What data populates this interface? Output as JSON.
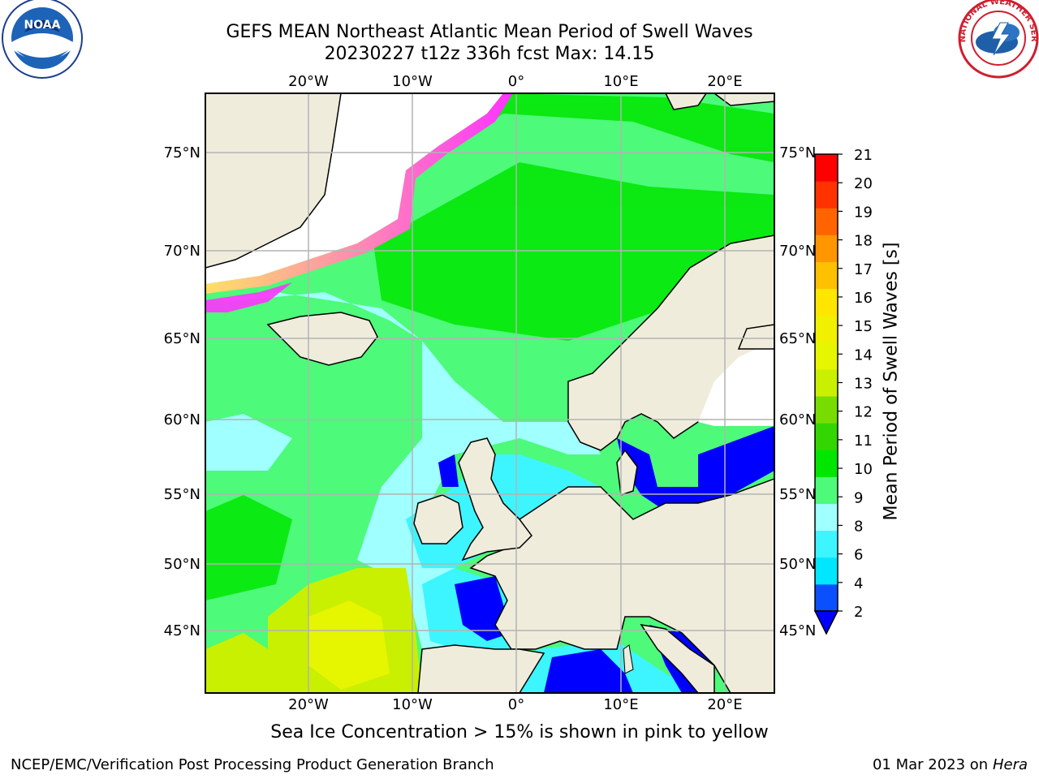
{
  "header": {
    "title_line1": "GEFS MEAN Northeast Atlantic Mean Period of Swell Waves",
    "title_line2": "20230227 t12z 336h fcst   Max: 14.15"
  },
  "map": {
    "lon_labels_top": [
      "20°W",
      "10°W",
      "0°",
      "10°E",
      "20°E"
    ],
    "lon_labels_bottom": [
      "20°W",
      "10°W",
      "0°",
      "10°E",
      "20°E"
    ],
    "lat_labels_left": [
      "75°N",
      "70°N",
      "65°N",
      "60°N",
      "55°N",
      "50°N",
      "45°N"
    ],
    "lat_labels_right": [
      "75°N",
      "70°N",
      "65°N",
      "60°N",
      "55°N",
      "50°N",
      "45°N"
    ],
    "colors": {
      "land": "#efecdc",
      "no_data": "#ffffff",
      "gridline": "#b3b3b3",
      "coast": "#000000",
      "ice_pink": "#ff33ff",
      "ice_yellow": "#ffe066"
    }
  },
  "colorbar": {
    "label": "Mean Period of Swell Waves [s]",
    "ticks": [
      "2",
      "4",
      "6",
      "8",
      "9",
      "10",
      "11",
      "12",
      "13",
      "14",
      "15",
      "16",
      "17",
      "18",
      "19",
      "20",
      "21"
    ],
    "colors": [
      "#0a50ff",
      "#00e6ff",
      "#3cf5ff",
      "#a0ffff",
      "#4dfa7a",
      "#00e600",
      "#33d600",
      "#77dd00",
      "#c8f000",
      "#e6f500",
      "#f0f000",
      "#ffe600",
      "#ffc000",
      "#ff9600",
      "#ff6400",
      "#ff3200",
      "#ff0000"
    ],
    "under_color": "#0000ff"
  },
  "caption": "Sea Ice Concentration > 15% is shown in pink to yellow",
  "footer": {
    "left": "NCEP/EMC/Verification Post Processing Product Generation Branch",
    "right_prefix": "01 Mar 2023 on",
    "right_italic": "Hera"
  },
  "logos": {
    "left": "noaa-logo",
    "right": "nws-logo",
    "left_text": "NOAA",
    "right_text": "NATIONAL WEATHER SERVICE"
  }
}
